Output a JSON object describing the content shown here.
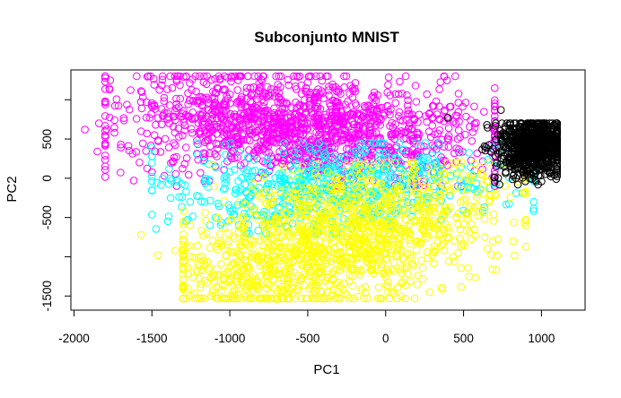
{
  "chart_data": {
    "type": "scatter",
    "title": "Subconjunto MNIST",
    "xlabel": "PC1",
    "ylabel": "PC2",
    "xlim": [
      -2020,
      1280
    ],
    "ylim": [
      -1680,
      1380
    ],
    "x_ticks": [
      -2000,
      -1500,
      -1000,
      -500,
      0,
      500,
      1000
    ],
    "x_tick_labels": [
      "-2000",
      "-1500",
      "-1000",
      "-500",
      "0",
      "500",
      "1000"
    ],
    "y_ticks": [
      -1500,
      -1000,
      -500,
      0,
      500,
      1000
    ],
    "y_tick_labels": [
      "-1500",
      "",
      "-500",
      "0",
      "500",
      ""
    ],
    "grid": false,
    "legend": "none",
    "marker": "open-circle",
    "series": [
      {
        "color": "#ff00ff",
        "approx_count": 1400,
        "cluster": {
          "x_range": [
            -1800,
            700
          ],
          "y_range": [
            -100,
            1300
          ],
          "center": [
            -550,
            650
          ]
        },
        "points": [
          [
            -1930,
            620
          ],
          [
            -1840,
            700
          ],
          [
            -1850,
            340
          ],
          [
            -1740,
            580
          ],
          [
            -1700,
            430
          ],
          [
            -1580,
            200
          ],
          [
            -1500,
            80
          ],
          [
            -1420,
            30
          ],
          [
            -1240,
            1260
          ],
          [
            -1150,
            1200
          ],
          [
            -800,
            1260
          ],
          [
            -500,
            1220
          ],
          [
            -210,
            1120
          ],
          [
            -80,
            1050
          ],
          [
            450,
            800
          ],
          [
            700,
            600
          ],
          [
            790,
            420
          ]
        ]
      },
      {
        "color": "#ffff00",
        "approx_count": 1400,
        "cluster": {
          "x_range": [
            -1300,
            900
          ],
          "y_range": [
            -1530,
            200
          ],
          "center": [
            -300,
            -800
          ]
        },
        "points": [
          [
            -1570,
            -720
          ],
          [
            -1460,
            -980
          ],
          [
            -1350,
            -920
          ],
          [
            -1300,
            -1160
          ],
          [
            -1270,
            -1400
          ],
          [
            -1230,
            -1470
          ],
          [
            -1150,
            -700
          ],
          [
            -1130,
            -1140
          ],
          [
            -1060,
            -830
          ],
          [
            -1000,
            -1280
          ],
          [
            -900,
            -1500
          ],
          [
            -850,
            -1400
          ],
          [
            -700,
            -1540
          ],
          [
            800,
            -240
          ],
          [
            850,
            180
          ],
          [
            1000,
            230
          ]
        ]
      },
      {
        "color": "#00ffff",
        "approx_count": 600,
        "cluster": {
          "x_range": [
            -1500,
            950
          ],
          "y_range": [
            -700,
            450
          ],
          "center": [
            -300,
            -100
          ]
        },
        "points": [
          [
            -1500,
            280
          ],
          [
            -1390,
            120
          ],
          [
            -1200,
            -230
          ],
          [
            -1140,
            -110
          ],
          [
            -950,
            -340
          ],
          [
            -880,
            -590
          ],
          [
            -750,
            -520
          ],
          [
            950,
            340
          ]
        ]
      },
      {
        "color": "#000000",
        "approx_count": 800,
        "cluster": {
          "x_range": [
            620,
            1100
          ],
          "y_range": [
            -80,
            700
          ],
          "center": [
            950,
            400
          ]
        },
        "points": [
          [
            400,
            770
          ],
          [
            740,
            870
          ],
          [
            650,
            680
          ],
          [
            700,
            -50
          ],
          [
            1000,
            -40
          ]
        ]
      }
    ]
  }
}
